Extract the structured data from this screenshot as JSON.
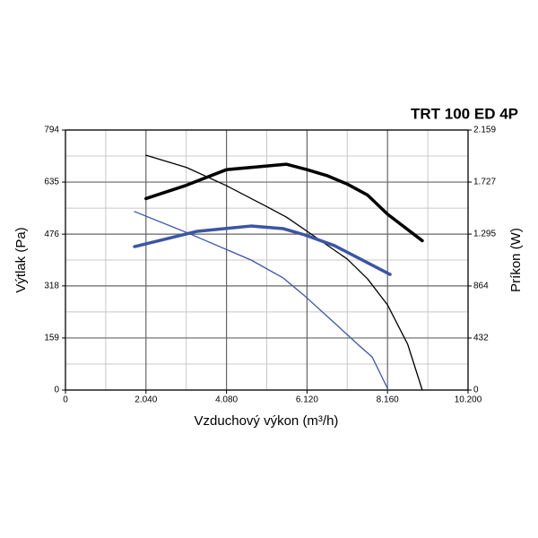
{
  "chart_data": {
    "type": "line",
    "title": "TRT 100 ED 4P",
    "x_label": "Vzduchový výkon (m³/h)",
    "y_label": "Výtlak (Pa)",
    "y2_label": "Príkon (W)",
    "xlim": [
      0,
      10200
    ],
    "ylim": [
      0,
      794
    ],
    "y2lim": [
      0,
      2159
    ],
    "xticks": [
      0,
      {
        "value": 2040,
        "label": "2.040"
      },
      {
        "value": 4080,
        "label": "4.080"
      },
      {
        "value": 6120,
        "label": "6.120"
      },
      {
        "value": 8160,
        "label": "8.160"
      },
      {
        "value": 10200,
        "label": "10.200"
      }
    ],
    "yticks": [
      0,
      159,
      318,
      476,
      635,
      794
    ],
    "y2ticks": [
      0,
      432,
      864,
      {
        "value": 1295,
        "label": "1.295"
      },
      {
        "value": 1727,
        "label": "1.727"
      },
      {
        "value": 2159,
        "label": "2.159"
      }
    ],
    "grid": true,
    "series": [
      {
        "color": "#000000",
        "line_width": 1.3,
        "x": [
          2040,
          3060,
          4080,
          5100,
          5600,
          6120,
          7140,
          7650,
          8160,
          8670,
          9040
        ],
        "values": [
          717,
          680,
          624,
          560,
          528,
          485,
          400,
          340,
          260,
          140,
          0
        ]
      },
      {
        "color": "#000000",
        "line_width": 3.5,
        "axis": "y2",
        "x": [
          2040,
          3060,
          4080,
          5100,
          5600,
          6120,
          6630,
          7140,
          7650,
          8160,
          9040
        ],
        "values": [
          1590,
          1700,
          1830,
          1860,
          1875,
          1830,
          1780,
          1710,
          1620,
          1460,
          1240
        ]
      },
      {
        "color": "#3c55a5",
        "line_width": 1.3,
        "x": [
          1750,
          3112,
          4703,
          5520,
          6065,
          6815,
          7430,
          7770,
          8180
        ],
        "values": [
          545,
          479,
          397,
          342,
          287,
          205,
          137,
          101,
          0
        ]
      },
      {
        "color": "#3c55a5",
        "line_width": 3.5,
        "axis": "y2",
        "x": [
          1750,
          3340,
          4700,
          5520,
          6065,
          6815,
          7655,
          8224
        ],
        "values": [
          1191,
          1318,
          1362,
          1340,
          1288,
          1199,
          1057,
          960
        ]
      }
    ]
  }
}
